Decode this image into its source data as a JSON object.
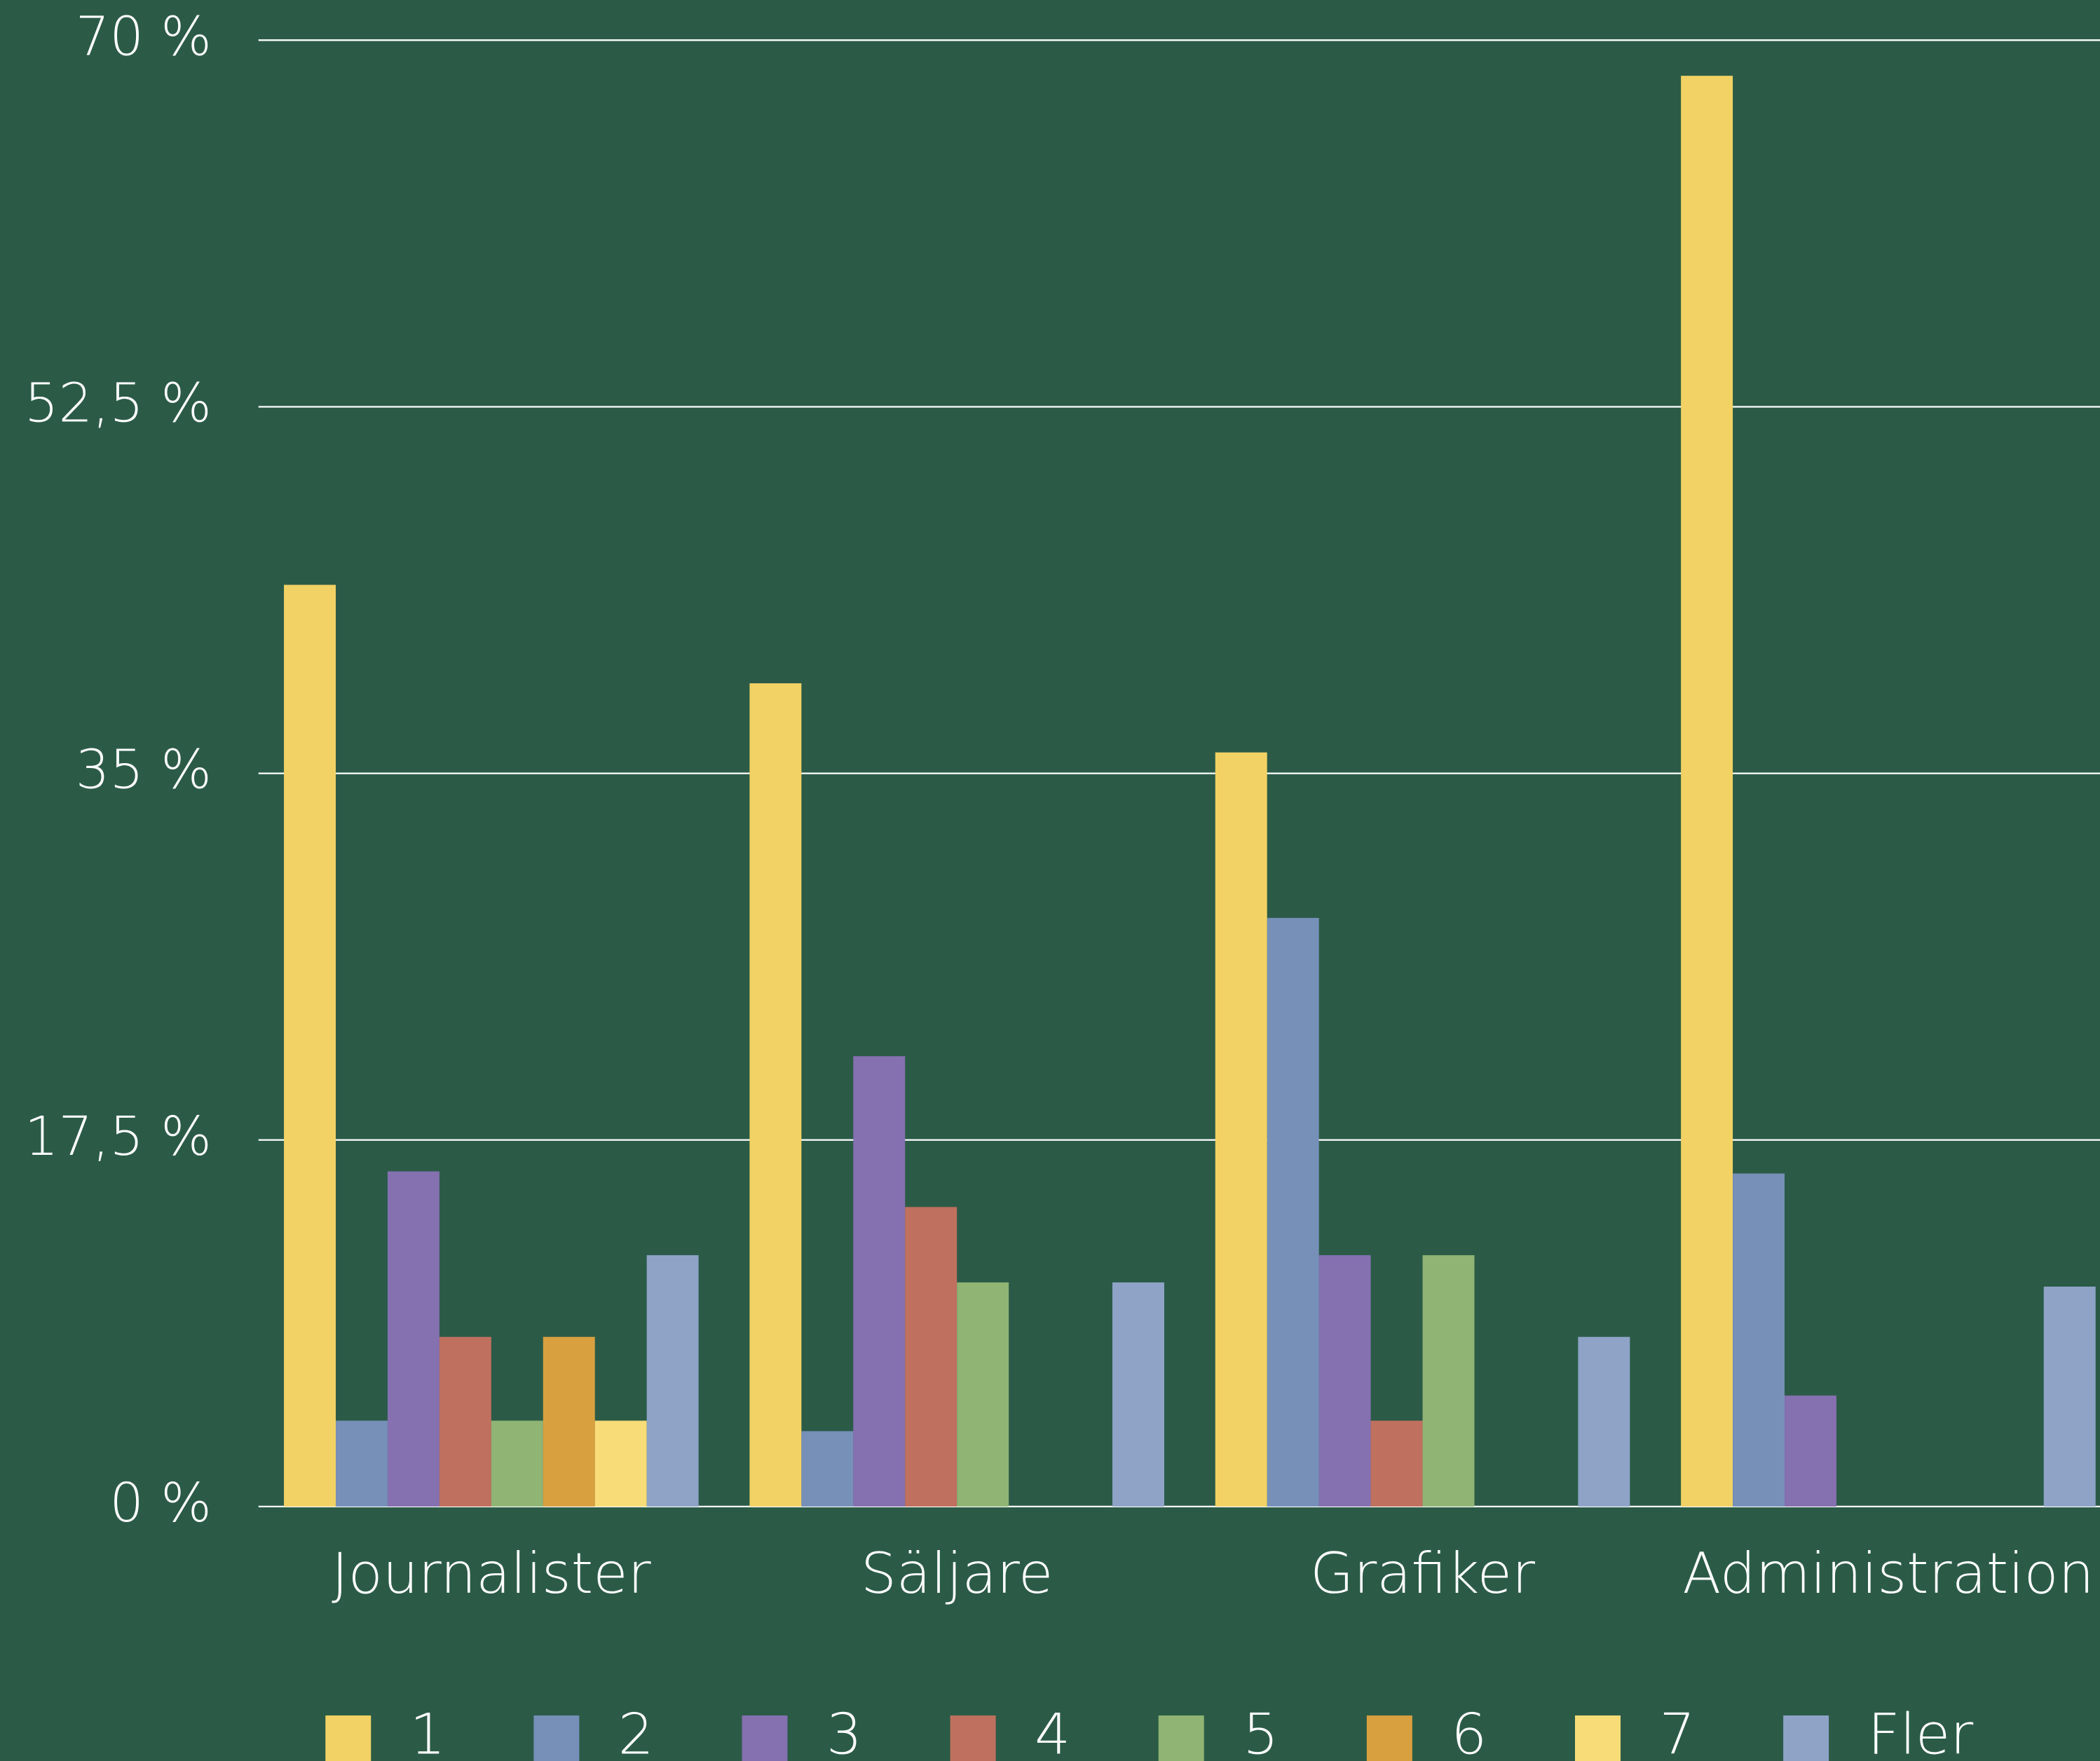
{
  "chart_data": {
    "type": "bar",
    "categories": [
      "Journalister",
      "Säljare",
      "Grafiker",
      "Administration"
    ],
    "series": [
      {
        "name": "1",
        "color": "#f2d264",
        "values": [
          44.0,
          39.3,
          36.0,
          68.3
        ]
      },
      {
        "name": "2",
        "color": "#7690b8",
        "values": [
          4.1,
          3.6,
          28.1,
          15.9
        ]
      },
      {
        "name": "3",
        "color": "#8570b0",
        "values": [
          16.0,
          21.5,
          12.0,
          5.3
        ]
      },
      {
        "name": "4",
        "color": "#c0705f",
        "values": [
          8.1,
          14.3,
          4.1,
          0
        ]
      },
      {
        "name": "5",
        "color": "#8fb474",
        "values": [
          4.1,
          10.7,
          12.0,
          0
        ]
      },
      {
        "name": "6",
        "color": "#d9a040",
        "values": [
          8.1,
          0,
          0,
          0
        ]
      },
      {
        "name": "7",
        "color": "#f7dc78",
        "values": [
          4.1,
          0,
          0,
          0
        ]
      },
      {
        "name": "Fler",
        "color": "#8fa3c7",
        "values": [
          12.0,
          10.7,
          8.1,
          10.5
        ]
      }
    ],
    "ylim": [
      0,
      70
    ],
    "yticks": [
      {
        "value": 0,
        "label": "0 %"
      },
      {
        "value": 17.5,
        "label": "17,5 %"
      },
      {
        "value": 35,
        "label": "35 %"
      },
      {
        "value": 52.5,
        "label": "52,5 %"
      },
      {
        "value": 70,
        "label": "70 %"
      }
    ],
    "grid": true,
    "legend": "bottom"
  }
}
